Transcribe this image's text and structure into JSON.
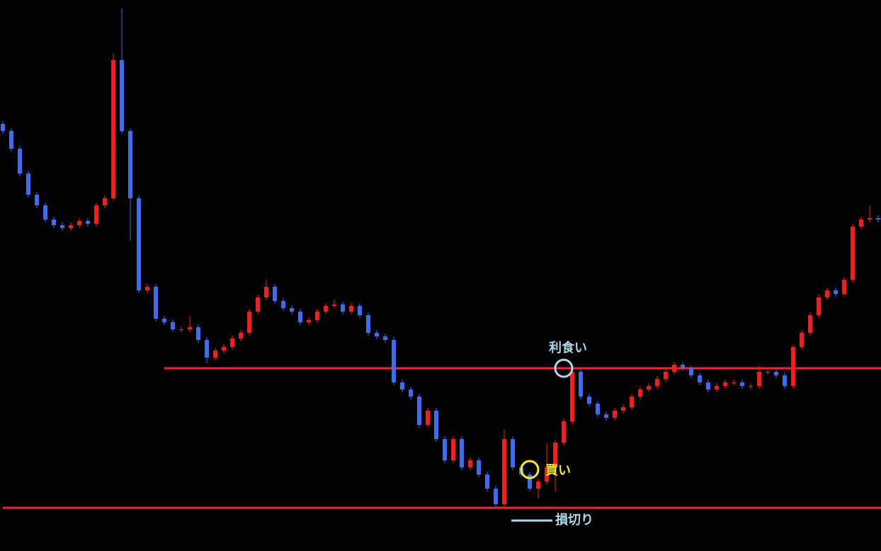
{
  "chart_data": {
    "type": "candlestick",
    "ylim": [
      0,
      778
    ],
    "up_color": "#ff1a1a",
    "down_color": "#3b6cf5",
    "open": [
      603,
      593,
      568,
      533,
      503,
      488,
      468,
      460,
      456,
      460,
      466,
      462,
      488,
      498,
      693,
      593,
      498,
      368,
      373,
      328,
      323,
      313,
      313,
      316,
      298,
      273,
      283,
      288,
      300,
      308,
      338,
      358,
      373,
      353,
      343,
      338,
      323,
      326,
      338,
      346,
      348,
      338,
      346,
      333,
      308,
      303,
      298,
      238,
      228,
      218,
      178,
      198,
      158,
      128,
      158,
      118,
      128,
      108,
      88,
      66,
      158,
      118,
      108,
      88,
      98,
      118,
      153,
      183,
      253,
      218,
      208,
      193,
      188,
      198,
      203,
      218,
      228,
      233,
      243,
      253,
      263,
      258,
      248,
      238,
      228,
      233,
      238,
      238,
      233,
      233,
      253,
      253,
      248,
      233,
      288,
      308,
      333,
      358,
      368,
      363,
      383,
      458,
      468,
      470
    ],
    "high": [
      607,
      597,
      572,
      537,
      507,
      492,
      472,
      464,
      464,
      470,
      470,
      492,
      502,
      703,
      766,
      597,
      502,
      377,
      377,
      332,
      327,
      317,
      332,
      320,
      302,
      287,
      292,
      304,
      312,
      342,
      362,
      383,
      377,
      357,
      347,
      342,
      330,
      342,
      350,
      356,
      352,
      350,
      350,
      337,
      312,
      307,
      302,
      242,
      232,
      222,
      202,
      202,
      162,
      162,
      162,
      132,
      132,
      112,
      92,
      172,
      162,
      122,
      112,
      102,
      152,
      157,
      187,
      258,
      257,
      222,
      212,
      197,
      202,
      207,
      222,
      232,
      237,
      247,
      257,
      267,
      267,
      262,
      252,
      242,
      237,
      242,
      242,
      242,
      237,
      262,
      257,
      257,
      252,
      292,
      312,
      337,
      362,
      372,
      372,
      387,
      462,
      472,
      488,
      474
    ],
    "low": [
      589,
      564,
      529,
      499,
      484,
      464,
      456,
      452,
      452,
      456,
      458,
      458,
      484,
      494,
      589,
      438,
      364,
      364,
      324,
      319,
      309,
      309,
      309,
      294,
      265,
      269,
      279,
      284,
      296,
      304,
      334,
      354,
      349,
      339,
      334,
      319,
      319,
      322,
      334,
      342,
      334,
      334,
      329,
      304,
      299,
      294,
      234,
      224,
      214,
      174,
      174,
      154,
      124,
      124,
      114,
      114,
      104,
      84,
      63,
      62,
      114,
      104,
      84,
      74,
      94,
      84,
      149,
      179,
      214,
      204,
      189,
      184,
      184,
      194,
      199,
      214,
      224,
      229,
      239,
      249,
      254,
      244,
      234,
      224,
      224,
      229,
      234,
      229,
      229,
      229,
      249,
      244,
      229,
      229,
      284,
      304,
      329,
      354,
      359,
      359,
      379,
      454,
      464,
      464
    ],
    "close": [
      593,
      568,
      533,
      503,
      488,
      468,
      460,
      456,
      460,
      466,
      462,
      488,
      498,
      693,
      593,
      498,
      368,
      373,
      328,
      323,
      313,
      313,
      316,
      298,
      273,
      283,
      288,
      300,
      308,
      338,
      358,
      373,
      353,
      343,
      338,
      323,
      326,
      338,
      346,
      348,
      338,
      346,
      333,
      308,
      303,
      298,
      238,
      228,
      218,
      178,
      198,
      158,
      128,
      158,
      118,
      128,
      108,
      88,
      66,
      158,
      118,
      108,
      88,
      98,
      118,
      153,
      183,
      253,
      218,
      208,
      193,
      188,
      198,
      203,
      218,
      228,
      233,
      243,
      253,
      263,
      258,
      248,
      238,
      228,
      233,
      238,
      238,
      233,
      233,
      253,
      253,
      248,
      233,
      288,
      308,
      333,
      358,
      368,
      363,
      383,
      458,
      468,
      470,
      468
    ],
    "lines": [
      {
        "value": 258,
        "from_index": 19,
        "color": "#ff2020"
      },
      {
        "value": 61,
        "from_index": 0,
        "color": "#ff2020"
      }
    ],
    "annotations": [
      {
        "text": "利食い",
        "index": 66,
        "value": 258,
        "color": "#a8d8ea"
      },
      {
        "text": "買い",
        "index": 62,
        "value": 115,
        "color": "#ffee00"
      }
    ],
    "legend": {
      "text": "損切り",
      "color": "#a8d8ea"
    }
  }
}
